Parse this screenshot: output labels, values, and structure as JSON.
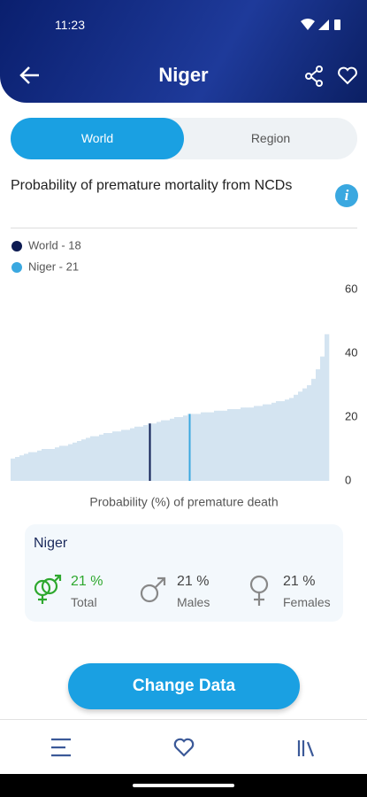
{
  "status_bar": {
    "time": "11:23"
  },
  "header": {
    "title": "Niger"
  },
  "tabs": [
    "World",
    "Region"
  ],
  "section_title": "Probability of premature mortality from NCDs",
  "chart_data": {
    "type": "bar",
    "xlabel": "Probability (%) of premature death",
    "color": "#d4e4f1",
    "values": [
      7,
      7.5,
      8,
      8.5,
      9,
      9,
      9.5,
      10,
      10,
      10,
      10.5,
      11,
      11,
      11.5,
      12,
      12.5,
      13,
      13.5,
      14,
      14,
      14.5,
      15,
      15,
      15.5,
      15.5,
      16,
      16,
      16.5,
      17,
      17,
      17.5,
      18,
      18,
      18.5,
      19,
      19,
      19.5,
      20,
      20,
      20.5,
      21,
      21,
      21,
      21.5,
      21.5,
      21.5,
      22,
      22,
      22,
      22.5,
      22.5,
      22.5,
      23,
      23,
      23,
      23.5,
      23.5,
      24,
      24,
      24.5,
      25,
      25,
      25.5,
      26,
      27,
      28,
      29,
      30,
      32,
      35,
      39,
      46
    ],
    "highlights": [
      {
        "name": "World - 18",
        "color": "#0d1b52",
        "value": 18
      },
      {
        "name": "Niger - 21",
        "color": "#3aa8e0",
        "value": 21
      }
    ],
    "ylim": [
      0,
      60
    ],
    "yticks": [
      0,
      20,
      40,
      60
    ]
  },
  "card": {
    "title": "Niger",
    "stats": [
      {
        "value": "21 %",
        "label": "Total"
      },
      {
        "value": "21 %",
        "label": "Males"
      },
      {
        "value": "21 %",
        "label": "Females"
      }
    ]
  },
  "button": "Change Data"
}
